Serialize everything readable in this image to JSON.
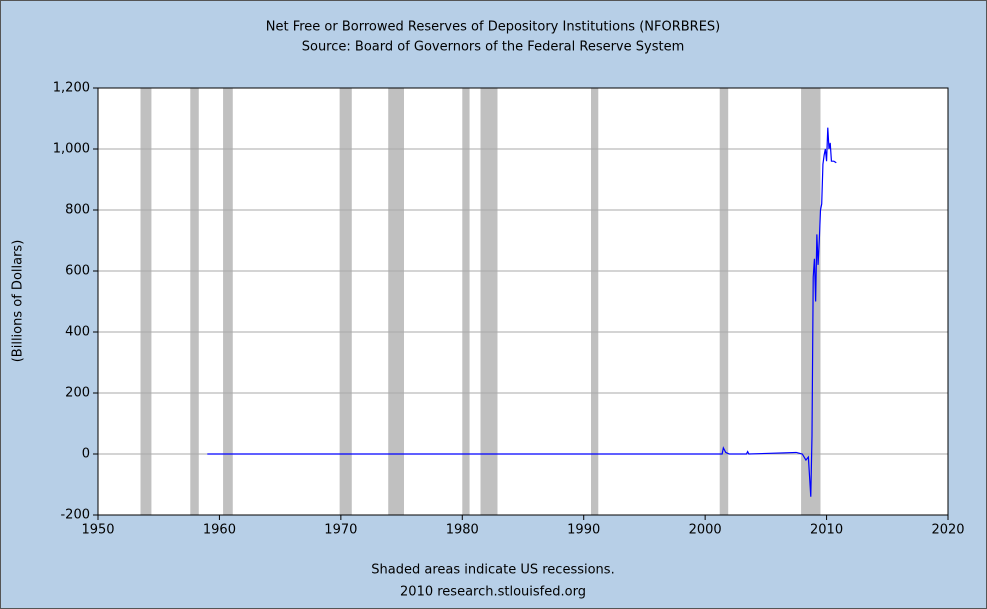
{
  "chart_data": {
    "type": "line",
    "title": "Net Free or Borrowed Reserves of Depository Institutions (NFORBRES)",
    "subtitle": "Source: Board of Governors of the Federal Reserve System",
    "ylabel": "(Billions of Dollars)",
    "footnote": "Shaded areas indicate US recessions.",
    "source": "2010 research.stlouisfed.org",
    "xlim": [
      1950,
      2020
    ],
    "xticks": [
      1950,
      1960,
      1970,
      1980,
      1990,
      2000,
      2010,
      2020
    ],
    "ylim": [
      -200,
      1200
    ],
    "yticks": [
      -200,
      0,
      200,
      400,
      600,
      800,
      {
        "value": 1000,
        "label": "1,000"
      },
      {
        "value": 1200,
        "label": "1,200"
      }
    ],
    "grid": true,
    "recession_color": "#c0c0c0",
    "recessions": [
      [
        1953.5,
        1954.4
      ],
      [
        1957.6,
        1958.3
      ],
      [
        1960.3,
        1961.1
      ],
      [
        1969.9,
        1970.9
      ],
      [
        1973.9,
        1975.2
      ],
      [
        1980.0,
        1980.6
      ],
      [
        1981.5,
        1982.9
      ],
      [
        1990.6,
        1991.2
      ],
      [
        2001.2,
        2001.9
      ],
      [
        2007.9,
        2009.5
      ]
    ],
    "series": [
      {
        "name": "NFORBRES",
        "color": "#0000ff",
        "x": [
          1959,
          1970,
          1980,
          1990,
          2000,
          2001.4,
          2001.5,
          2001.7,
          2002,
          2003.4,
          2003.5,
          2003.6,
          2007.5,
          2008.0,
          2008.3,
          2008.5,
          2008.7,
          2008.8,
          2008.9,
          2009.0,
          2009.1,
          2009.2,
          2009.3,
          2009.4,
          2009.5,
          2009.6,
          2009.7,
          2009.8,
          2009.9,
          2010.0,
          2010.1,
          2010.2,
          2010.3,
          2010.4,
          2010.6,
          2010.8
        ],
        "values": [
          0,
          0,
          0,
          0,
          0,
          0,
          20,
          5,
          0,
          0,
          8,
          0,
          5,
          0,
          -20,
          -10,
          -140,
          60,
          580,
          640,
          500,
          720,
          620,
          700,
          800,
          820,
          950,
          980,
          1000,
          960,
          1070,
          1000,
          1020,
          960,
          960,
          955
        ]
      }
    ]
  }
}
